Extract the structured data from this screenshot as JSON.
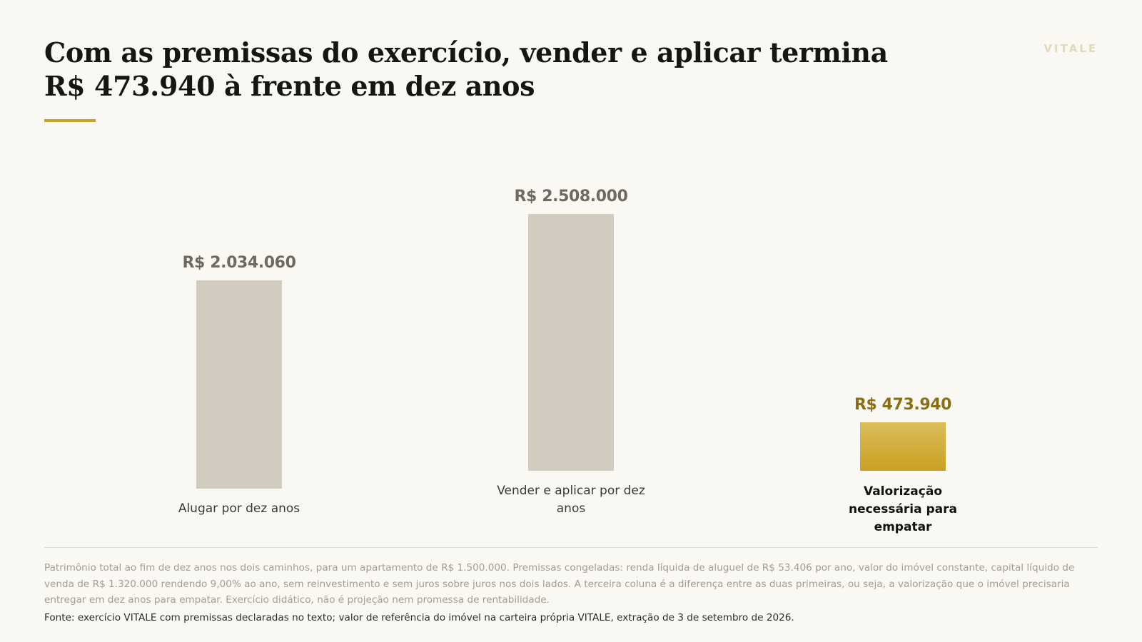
{
  "header": {
    "title": "Com as premissas do exercício, vender e aplicar termina R$ 473.940 à frente em dez anos",
    "brand": "VITALE"
  },
  "colors": {
    "neutral_bar": "#d2cbbf",
    "highlight_bar_top": "#dbbd5c",
    "highlight_bar_bottom": "#c9a020",
    "neutral_value": "#6e6a62",
    "highlight_value": "#8a6e14",
    "accent_rule": "#c9a22b"
  },
  "chart_data": {
    "type": "bar",
    "title": "Com as premissas do exercício, vender e aplicar termina R$ 473.940 à frente em dez anos",
    "xlabel": "",
    "ylabel": "",
    "grid": false,
    "legend": "none",
    "categories": [
      "Alugar por dez anos",
      "Vender e aplicar por dez anos",
      "Valorização necessária para empatar"
    ],
    "values": [
      2034060,
      2508000,
      473940
    ],
    "value_labels": [
      "R$ 2.034.060",
      "R$ 2.508.000",
      "R$ 473.940"
    ],
    "highlight": [
      false,
      false,
      true
    ],
    "ylim": [
      0,
      2508000
    ]
  },
  "footer": {
    "note": "Patrimônio total ao fim de dez anos nos dois caminhos, para um apartamento de R$ 1.500.000. Premissas congeladas: renda líquida de aluguel de R$ 53.406 por ano, valor do imóvel constante, capital líquido de venda de R$ 1.320.000 rendendo 9,00% ao ano, sem reinvestimento e sem juros sobre juros nos dois lados. A terceira coluna é a diferença entre as duas primeiras, ou seja, a valorização que o imóvel precisaria entregar em dez anos para empatar. Exercício didático, não é projeção nem promessa de rentabilidade.",
    "source": "Fonte: exercício VITALE com premissas declaradas no texto; valor de referência do imóvel na carteira própria VITALE, extração de 3 de setembro de 2026."
  }
}
